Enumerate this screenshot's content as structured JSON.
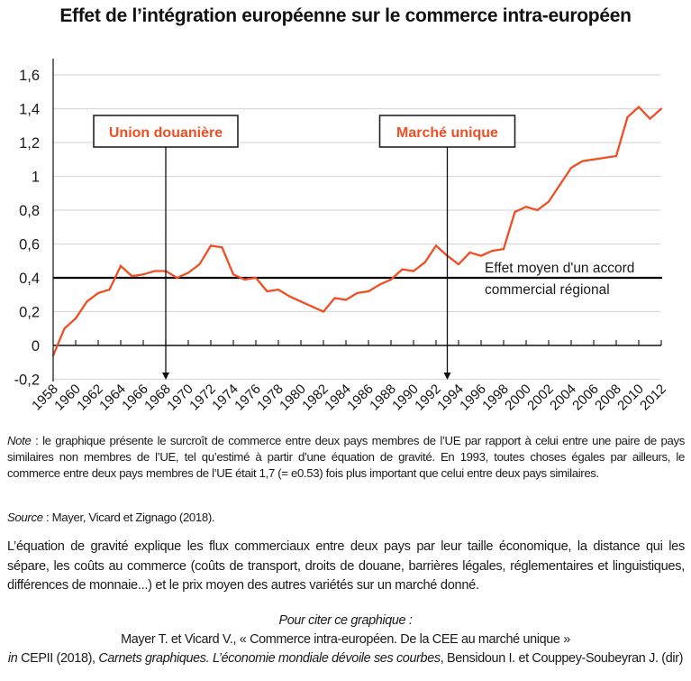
{
  "chart_data": {
    "type": "line",
    "title": "Effet de l’intégration européenne sur le commerce intra-européen",
    "xlabel": "",
    "ylabel": "",
    "ylim": [
      -0.2,
      1.6
    ],
    "yticks": [
      1.6,
      1.4,
      1.2,
      1.0,
      0.8,
      0.6,
      0.4,
      0.2,
      0,
      -0.2
    ],
    "ytick_labels": [
      "1,6",
      "1,4",
      "1,2",
      "1",
      "0,8",
      "0,6",
      "0,4",
      "0,2",
      "0",
      "-0,2"
    ],
    "xlim": [
      1958,
      2012
    ],
    "xtick_labels": [
      "1958",
      "1960",
      "1962",
      "1964",
      "1966",
      "1968",
      "1970",
      "1972",
      "1974",
      "1976",
      "1978",
      "1980",
      "1982",
      "1984",
      "1986",
      "1988",
      "1990",
      "1992",
      "1994",
      "1996",
      "1998",
      "2000",
      "2002",
      "2004",
      "2006",
      "2008",
      "2010",
      "2012"
    ],
    "grid": true,
    "series": [
      {
        "name": "Effet de l'intégration européenne",
        "color": "#f04e23",
        "x": [
          1958,
          1959,
          1960,
          1961,
          1962,
          1963,
          1964,
          1965,
          1966,
          1967,
          1968,
          1969,
          1970,
          1971,
          1972,
          1973,
          1974,
          1975,
          1976,
          1977,
          1978,
          1979,
          1980,
          1981,
          1982,
          1983,
          1984,
          1985,
          1986,
          1987,
          1988,
          1989,
          1990,
          1991,
          1992,
          1993,
          1994,
          1995,
          1996,
          1997,
          1998,
          1999,
          2000,
          2001,
          2002,
          2003,
          2004,
          2005,
          2006,
          2007,
          2008,
          2009,
          2010,
          2011,
          2012
        ],
        "values": [
          -0.06,
          0.1,
          0.16,
          0.26,
          0.31,
          0.33,
          0.47,
          0.41,
          0.42,
          0.44,
          0.44,
          0.4,
          0.43,
          0.48,
          0.59,
          0.58,
          0.42,
          0.39,
          0.4,
          0.32,
          0.33,
          0.29,
          0.26,
          0.23,
          0.2,
          0.28,
          0.27,
          0.31,
          0.32,
          0.36,
          0.39,
          0.45,
          0.44,
          0.49,
          0.59,
          0.53,
          0.48,
          0.55,
          0.53,
          0.56,
          0.57,
          0.79,
          0.82,
          0.8,
          0.85,
          0.95,
          1.05,
          1.09,
          1.1,
          1.11,
          1.12,
          1.35,
          1.41,
          1.34,
          1.4
        ]
      }
    ],
    "reference_line": {
      "value": 0.4,
      "label_line1": "Effet moyen d'un accord",
      "label_line2": "commercial régional",
      "color": "#000000"
    },
    "annotations": [
      {
        "label": "Union douanière",
        "year": 1968,
        "color": "#f04e23"
      },
      {
        "label": "Marché unique",
        "year": 1993,
        "color": "#f04e23"
      }
    ]
  },
  "note": {
    "label": "Note",
    "text": " : le graphique présente le surcroît de commerce entre deux pays membres de l’UE par rapport à celui entre une paire de pays similaires non membres de l’UE, tel qu’estimé à partir d’une équation de gravité. En 1993, toutes choses égales par ailleurs, le commerce entre deux pays membres de l’UE était 1,7 (= e0.53) fois plus important que celui entre deux pays similaires."
  },
  "source": {
    "label": "Source",
    "text": " : Mayer, Vicard et Zignago (2018)."
  },
  "gravity_text": "L’équation de gravité explique les flux commerciaux entre deux pays par leur taille économique, la distance qui les sépare, les coûts au commerce (coûts de transport, droits de douane, barrières légales, réglementaires et linguistiques, différences de monnaie...) et le prix moyen des autres variétés sur un marché donné.",
  "citation": {
    "heading": "Pour citer ce graphique :",
    "line1": "Mayer T. et Vicard V., « Commerce intra-européen. De la CEE au marché unique »",
    "line2_in": "in",
    "line2_cepii": " CEPII (2018), ",
    "line2_book": "Carnets graphiques. L’économie mondiale dévoile ses courbes",
    "line2_editors": ", Bensidoun I. et Couppey-Soubeyran J. (dir)"
  }
}
